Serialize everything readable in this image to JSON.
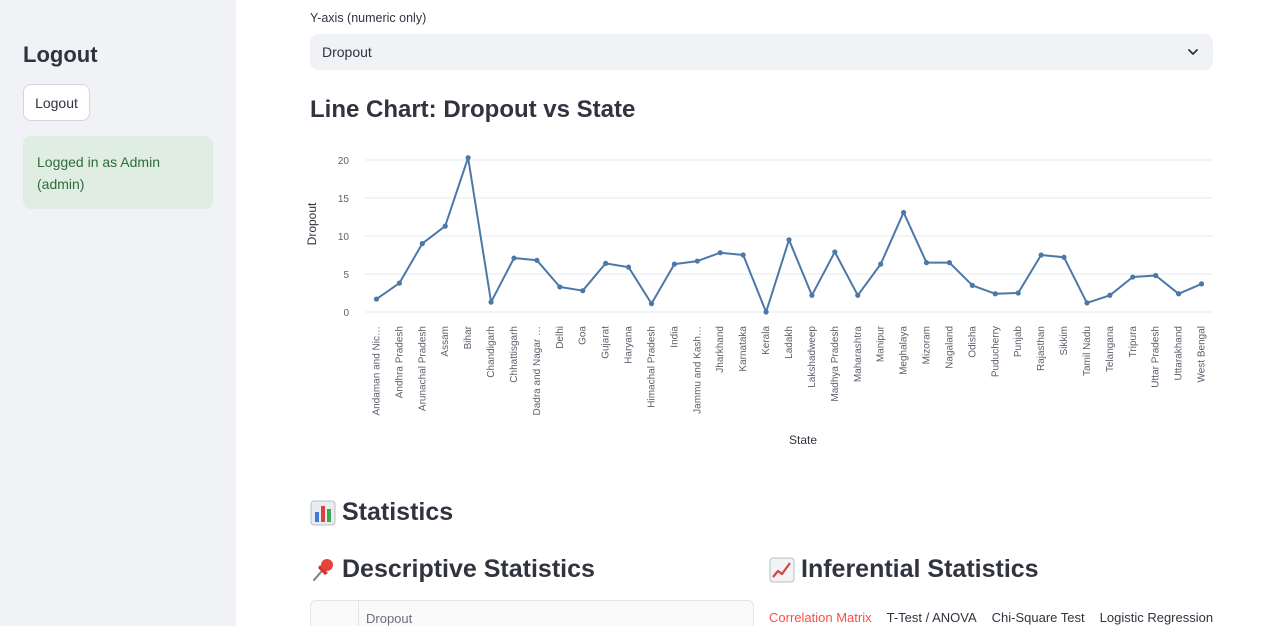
{
  "sidebar": {
    "title": "Logout",
    "logout_button": "Logout",
    "status": "Logged in as Admin (admin)"
  },
  "controls": {
    "yaxis_label": "Y-axis (numeric only)",
    "yaxis_value": "Dropout"
  },
  "chart_title": "Line Chart: Dropout vs State",
  "sections": {
    "statistics": "Statistics",
    "descriptive": "Descriptive Statistics",
    "inferential": "Inferential Statistics",
    "table_column": "Dropout"
  },
  "tabs": [
    {
      "label": "Correlation Matrix",
      "active": true
    },
    {
      "label": "T-Test / ANOVA",
      "active": false
    },
    {
      "label": "Chi-Square Test",
      "active": false
    },
    {
      "label": "Logistic Regression",
      "active": false
    }
  ],
  "colors": {
    "accent": "#ff4b4b",
    "line": "#4c78a8",
    "sidebar_bg": "#f0f2f6",
    "status_bg": "#dfede3",
    "status_text": "#2e6b3a"
  },
  "chart_data": {
    "type": "line",
    "xlabel": "State",
    "ylabel": "Dropout",
    "ylim": [
      0,
      20
    ],
    "yticks": [
      0,
      5,
      10,
      15,
      20
    ],
    "grid": true,
    "categories": [
      "Andaman and Nic…",
      "Andhra Pradesh",
      "Arunachal Pradesh",
      "Assam",
      "Bihar",
      "Chandigarh",
      "Chhattisgarh",
      "Dadra and Nagar …",
      "Delhi",
      "Goa",
      "Gujarat",
      "Haryana",
      "Himachal Pradesh",
      "India",
      "Jammu and Kash…",
      "Jharkhand",
      "Karnataka",
      "Kerala",
      "Ladakh",
      "Lakshadweep",
      "Madhya Pradesh",
      "Maharashtra",
      "Manipur",
      "Meghalaya",
      "Mizoram",
      "Nagaland",
      "Odisha",
      "Puducherry",
      "Punjab",
      "Rajasthan",
      "Sikkim",
      "Tamil Nadu",
      "Telangana",
      "Tripura",
      "Uttar Pradesh",
      "Uttarakhand",
      "West Bengal"
    ],
    "values": [
      1.7,
      3.8,
      9.0,
      11.3,
      20.3,
      1.3,
      7.1,
      6.8,
      3.3,
      2.8,
      6.4,
      5.9,
      1.1,
      6.3,
      6.7,
      7.8,
      7.5,
      0.0,
      9.5,
      2.2,
      7.9,
      2.2,
      6.3,
      13.1,
      6.5,
      6.5,
      3.5,
      2.4,
      2.5,
      7.5,
      7.2,
      1.2,
      2.2,
      4.6,
      4.8,
      2.4,
      3.7
    ]
  }
}
